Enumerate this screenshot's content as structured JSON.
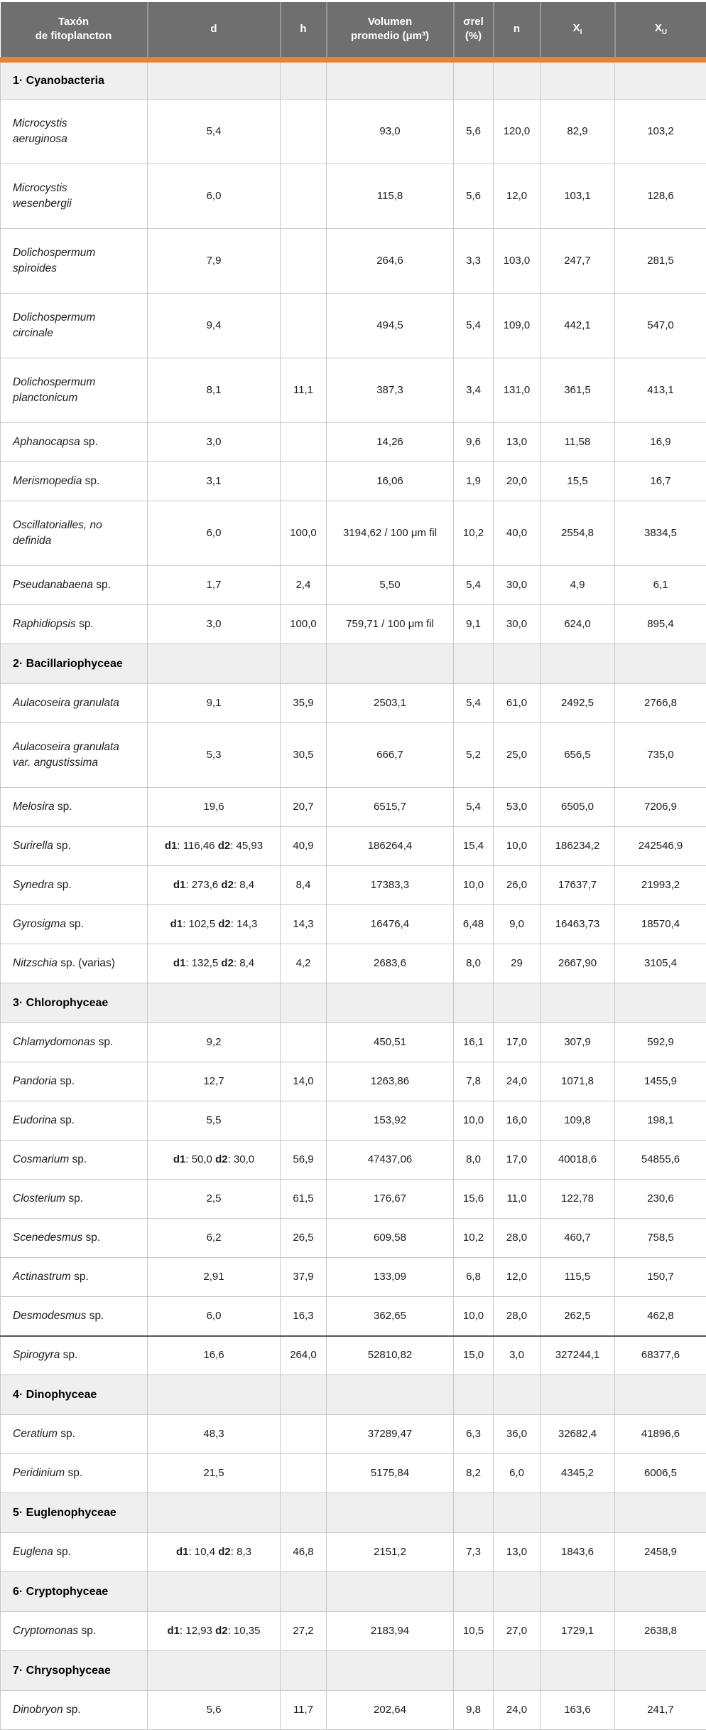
{
  "colors": {
    "header_bg": "#6f6f6f",
    "accent_orange": "#e2833c",
    "section_bg": "#efefef",
    "grid_border": "#c8c8c8",
    "header_text": "#ffffff"
  },
  "chart_data": {
    "type": "table",
    "title": "",
    "dim_labels": {
      "d1": "d1",
      "d2": "d2"
    },
    "dim_sep": ": ",
    "columns": [
      {
        "key": "taxon",
        "lines": [
          "Taxón",
          "de fitoplancton"
        ]
      },
      {
        "key": "d",
        "lines": [
          "d"
        ]
      },
      {
        "key": "h",
        "lines": [
          "h"
        ]
      },
      {
        "key": "vol",
        "lines": [
          "Volumen",
          "promedio (μm³)"
        ]
      },
      {
        "key": "srel",
        "lines": [
          "σrel",
          "(%)"
        ]
      },
      {
        "key": "n",
        "lines": [
          "n"
        ]
      },
      {
        "key": "xi",
        "base": "X",
        "sub": "I"
      },
      {
        "key": "xu",
        "base": "X",
        "sub": "U"
      }
    ],
    "sections": [
      {
        "label": "1· Cyanobacteria",
        "rows": [
          {
            "cells": {
              "taxon": {
                "name": "Microcystis\naeruginosa"
              },
              "d": "5,4",
              "h": "",
              "vol": "93,0",
              "srel": "5,6",
              "n": "120,0",
              "xi": "82,9",
              "xu": "103,2"
            }
          },
          {
            "cells": {
              "taxon": {
                "name": "Microcystis\nwesenbergii"
              },
              "d": "6,0",
              "h": "",
              "vol": "115,8",
              "srel": "5,6",
              "n": "12,0",
              "xi": "103,1",
              "xu": "128,6"
            }
          },
          {
            "cells": {
              "taxon": {
                "name": "Dolichospermum\nspiroides"
              },
              "d": "7,9",
              "h": "",
              "vol": "264,6",
              "srel": "3,3",
              "n": "103,0",
              "xi": "247,7",
              "xu": "281,5"
            }
          },
          {
            "cells": {
              "taxon": {
                "name": "Dolichospermum\ncircinale"
              },
              "d": "9,4",
              "h": "",
              "vol": "494,5",
              "srel": "5,4",
              "n": "109,0",
              "xi": "442,1",
              "xu": "547,0"
            }
          },
          {
            "cells": {
              "taxon": {
                "name": "Dolichospermum\nplanctonicum"
              },
              "d": "8,1",
              "h": "11,1",
              "vol": "387,3",
              "srel": "3,4",
              "n": "131,0",
              "xi": "361,5",
              "xu": "413,1"
            }
          },
          {
            "cells": {
              "taxon": {
                "name": "Aphanocapsa",
                "suffix": "sp."
              },
              "d": "3,0",
              "h": "",
              "vol": "14,26",
              "srel": "9,6",
              "n": "13,0",
              "xi": "11,58",
              "xu": "16,9"
            }
          },
          {
            "cells": {
              "taxon": {
                "name": "Merismopedia",
                "suffix": "sp."
              },
              "d": "3,1",
              "h": "",
              "vol": "16,06",
              "srel": "1,9",
              "n": "20,0",
              "xi": "15,5",
              "xu": "16,7"
            }
          },
          {
            "cells": {
              "taxon": {
                "name": "Oscillatorialles, no\ndefinida"
              },
              "d": "6,0",
              "h": "100,0",
              "vol": "3194,62 / 100 μm fil",
              "srel": "10,2",
              "n": "40,0",
              "xi": "2554,8",
              "xu": "3834,5"
            }
          },
          {
            "cells": {
              "taxon": {
                "name": "Pseudanabaena",
                "suffix": "sp."
              },
              "d": "1,7",
              "h": "2,4",
              "vol": "5,50",
              "srel": "5,4",
              "n": "30,0",
              "xi": "4,9",
              "xu": "6,1"
            }
          },
          {
            "cells": {
              "taxon": {
                "name": "Raphidiopsis",
                "suffix": "sp."
              },
              "d": "3,0",
              "h": "100,0",
              "vol": "759,71 / 100 μm fil",
              "srel": "9,1",
              "n": "30,0",
              "xi": "624,0",
              "xu": "895,4"
            }
          }
        ]
      },
      {
        "label": "2· Bacillariophyceae",
        "rows": [
          {
            "cells": {
              "taxon": {
                "name": "Aulacoseira granulata"
              },
              "d": "9,1",
              "h": "35,9",
              "vol": "2503,1",
              "srel": "5,4",
              "n": "61,0",
              "xi": "2492,5",
              "xu": "2766,8"
            }
          },
          {
            "cells": {
              "taxon": {
                "name": "Aulacoseira granulata\nvar. angustissima"
              },
              "d": "5,3",
              "h": "30,5",
              "vol": "666,7",
              "srel": "5,2",
              "n": "25,0",
              "xi": "656,5",
              "xu": "735,0"
            }
          },
          {
            "cells": {
              "taxon": {
                "name": "Melosira",
                "suffix": "sp."
              },
              "d": "19,6",
              "h": "20,7",
              "vol": "6515,7",
              "srel": "5,4",
              "n": "53,0",
              "xi": "6505,0",
              "xu": "7206,9"
            }
          },
          {
            "cells": {
              "taxon": {
                "name": "Surirella",
                "suffix": "sp."
              },
              "d": {
                "d1": "116,46",
                "d2": "45,93"
              },
              "h": "40,9",
              "vol": "186264,4",
              "srel": "15,4",
              "n": "10,0",
              "xi": "186234,2",
              "xu": "242546,9"
            }
          },
          {
            "cells": {
              "taxon": {
                "name": "Synedra",
                "suffix": "sp."
              },
              "d": {
                "d1": "273,6",
                "d2": "8,4"
              },
              "h": "8,4",
              "vol": "17383,3",
              "srel": "10,0",
              "n": "26,0",
              "xi": "17637,7",
              "xu": "21993,2"
            }
          },
          {
            "cells": {
              "taxon": {
                "name": "Gyrosigma",
                "suffix": "sp."
              },
              "d": {
                "d1": "102,5",
                "d2": "14,3"
              },
              "h": "14,3",
              "vol": "16476,4",
              "srel": "6,48",
              "n": "9,0",
              "xi": "16463,73",
              "xu": "18570,4"
            }
          },
          {
            "cells": {
              "taxon": {
                "name": "Nitzschia",
                "suffix": "sp. (varias)"
              },
              "d": {
                "d1": "132,5",
                "d2": "8,4"
              },
              "h": "4,2",
              "vol": "2683,6",
              "srel": "8,0",
              "n": "29",
              "xi": "2667,90",
              "xu": "3105,4"
            }
          }
        ]
      },
      {
        "label": "3· Chlorophyceae",
        "rows": [
          {
            "cells": {
              "taxon": {
                "name": "Chlamydomonas",
                "suffix": "sp."
              },
              "d": "9,2",
              "h": "",
              "vol": "450,51",
              "srel": "16,1",
              "n": "17,0",
              "xi": "307,9",
              "xu": "592,9"
            }
          },
          {
            "cells": {
              "taxon": {
                "name": "Pandoria",
                "suffix": "sp."
              },
              "d": "12,7",
              "h": "14,0",
              "vol": "1263,86",
              "srel": "7,8",
              "n": "24,0",
              "xi": "1071,8",
              "xu": "1455,9"
            }
          },
          {
            "cells": {
              "taxon": {
                "name": "Eudorina",
                "suffix": "sp."
              },
              "d": "5,5",
              "h": "",
              "vol": "153,92",
              "srel": "10,0",
              "n": "16,0",
              "xi": "109,8",
              "xu": "198,1"
            }
          },
          {
            "cells": {
              "taxon": {
                "name": "Cosmarium",
                "suffix": "sp."
              },
              "d": {
                "d1": "50,0",
                "d2": "30,0"
              },
              "h": "56,9",
              "vol": "47437,06",
              "srel": "8,0",
              "n": "17,0",
              "xi": "40018,6",
              "xu": "54855,6"
            }
          },
          {
            "cells": {
              "taxon": {
                "name": "Closterium",
                "suffix": "sp."
              },
              "d": "2,5",
              "h": "61,5",
              "vol": "176,67",
              "srel": "15,6",
              "n": "11,0",
              "xi": "122,78",
              "xu": "230,6"
            }
          },
          {
            "cells": {
              "taxon": {
                "name": "Scenedesmus",
                "suffix": "sp."
              },
              "d": "6,2",
              "h": "26,5",
              "vol": "609,58",
              "srel": "10,2",
              "n": "28,0",
              "xi": "460,7",
              "xu": "758,5"
            }
          },
          {
            "cells": {
              "taxon": {
                "name": "Actinastrum",
                "suffix": "sp."
              },
              "d": "2,91",
              "h": "37,9",
              "vol": "133,09",
              "srel": "6,8",
              "n": "12,0",
              "xi": "115,5",
              "xu": "150,7"
            }
          },
          {
            "cells": {
              "taxon": {
                "name": "Desmodesmus",
                "suffix": "sp."
              },
              "d": "6,0",
              "h": "16,3",
              "vol": "362,65",
              "srel": "10,0",
              "n": "28,0",
              "xi": "262,5",
              "xu": "462,8"
            }
          },
          {
            "heavy_top": true,
            "cells": {
              "taxon": {
                "name": "Spirogyra",
                "suffix": "sp."
              },
              "d": "16,6",
              "h": "264,0",
              "vol": "52810,82",
              "srel": "15,0",
              "n": "3,0",
              "xi": "327244,1",
              "xu": "68377,6"
            }
          }
        ]
      },
      {
        "label": "4· Dinophyceae",
        "rows": [
          {
            "cells": {
              "taxon": {
                "name": "Ceratium",
                "suffix": "sp."
              },
              "d": "48,3",
              "h": "",
              "vol": "37289,47",
              "srel": "6,3",
              "n": "36,0",
              "xi": "32682,4",
              "xu": "41896,6"
            }
          },
          {
            "cells": {
              "taxon": {
                "name": "Peridinium",
                "suffix": "sp."
              },
              "d": "21,5",
              "h": "",
              "vol": "5175,84",
              "srel": "8,2",
              "n": "6,0",
              "xi": "4345,2",
              "xu": "6006,5"
            }
          }
        ]
      },
      {
        "label": "5· Euglenophyceae",
        "rows": [
          {
            "cells": {
              "taxon": {
                "name": "Euglena",
                "suffix": "sp."
              },
              "d": {
                "d1": "10,4",
                "d2": "8,3"
              },
              "h": "46,8",
              "vol": "2151,2",
              "srel": "7,3",
              "n": "13,0",
              "xi": "1843,6",
              "xu": "2458,9"
            }
          }
        ]
      },
      {
        "label": "6· Cryptophyceae",
        "rows": [
          {
            "cells": {
              "taxon": {
                "name": "Cryptomonas",
                "suffix": "sp."
              },
              "d": {
                "d1": "12,93",
                "d2": "10,35"
              },
              "h": "27,2",
              "vol": "2183,94",
              "srel": "10,5",
              "n": "27,0",
              "xi": "1729,1",
              "xu": "2638,8"
            }
          }
        ]
      },
      {
        "label": "7· Chrysophyceae",
        "rows": [
          {
            "cells": {
              "taxon": {
                "name": "Dinobryon",
                "suffix": "sp."
              },
              "d": "5,6",
              "h": "11,7",
              "vol": "202,64",
              "srel": "9,8",
              "n": "24,0",
              "xi": "163,6",
              "xu": "241,7"
            }
          }
        ]
      }
    ]
  }
}
